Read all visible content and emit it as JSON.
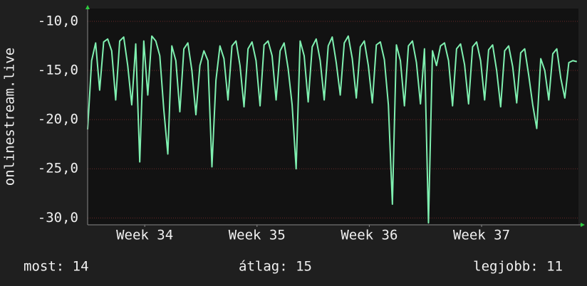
{
  "chart_data": {
    "type": "line",
    "y_label": "onlinestream.live",
    "x": [
      0,
      0.25,
      0.5,
      0.75,
      1,
      1.25,
      1.5,
      1.75,
      2,
      2.25,
      2.5,
      2.75,
      3,
      3.25,
      3.5,
      3.75,
      4,
      4.25,
      4.5,
      4.75,
      5,
      5.25,
      5.5,
      5.75,
      6,
      6.25,
      6.5,
      6.75,
      7,
      7.25,
      7.5,
      7.75,
      8,
      8.25,
      8.5,
      8.75,
      9,
      9.25,
      9.5,
      9.75,
      10,
      10.25,
      10.5,
      10.75,
      11,
      11.25,
      11.5,
      11.75,
      12,
      12.25,
      12.5,
      12.75,
      13,
      13.25,
      13.5,
      13.75,
      14,
      14.25,
      14.5,
      14.75,
      15,
      15.25,
      15.5,
      15.75,
      16,
      16.25,
      16.5,
      16.75,
      17,
      17.25,
      17.5,
      17.75,
      18,
      18.25,
      18.5,
      18.75,
      19,
      19.25,
      19.5,
      19.75,
      20,
      20.25,
      20.5,
      20.75,
      21,
      21.25,
      21.5,
      21.75,
      22,
      22.25,
      22.5,
      22.75,
      23,
      23.25,
      23.5,
      23.75,
      24,
      24.25,
      24.5,
      24.75,
      25,
      25.25,
      25.5,
      25.75,
      26,
      26.25,
      26.5,
      26.75,
      27,
      27.25,
      27.5,
      27.75,
      28,
      28.25,
      28.5,
      28.75,
      29,
      29.25,
      29.5,
      29.75,
      30,
      30.25,
      30.5
    ],
    "series": [
      {
        "color": "#7ff0b0",
        "values": [
          -21,
          -14,
          -12.2,
          -17,
          -12.1,
          -11.8,
          -13,
          -18,
          -12,
          -11.6,
          -14.5,
          -18.5,
          -12.3,
          -24.3,
          -12,
          -17.5,
          -11.5,
          -12,
          -13.5,
          -19,
          -23.5,
          -12.5,
          -14,
          -19.2,
          -12.8,
          -12.2,
          -15,
          -19.5,
          -14.5,
          -13,
          -14,
          -24.8,
          -16,
          -12.5,
          -13.8,
          -18,
          -12.5,
          -12,
          -14.5,
          -18.7,
          -12.8,
          -12.1,
          -14,
          -18.6,
          -12.4,
          -12,
          -13.5,
          -18,
          -13,
          -12.2,
          -14.8,
          -18.5,
          -25,
          -12,
          -13.5,
          -18.2,
          -12.6,
          -11.8,
          -14,
          -18,
          -12.5,
          -11.6,
          -14.2,
          -17.5,
          -12.2,
          -11.5,
          -13.8,
          -17.8,
          -12.6,
          -12,
          -14.5,
          -18.3,
          -12.4,
          -12.1,
          -13.9,
          -18.5,
          -28.6,
          -12.4,
          -14,
          -18.6,
          -12.5,
          -12,
          -14.2,
          -18.4,
          -12.8,
          -30.5,
          -13,
          -14.5,
          -12.5,
          -12.2,
          -14,
          -18.6,
          -12.8,
          -12.3,
          -14.4,
          -18.4,
          -12.6,
          -12.1,
          -14,
          -18,
          -12.9,
          -12.4,
          -15,
          -18.7,
          -13,
          -12.5,
          -14.6,
          -18.3,
          -13.2,
          -12.8,
          -15.5,
          -18.5,
          -20.9,
          -13.8,
          -15,
          -18,
          -13.3,
          -12.8,
          -15.8,
          -17.8,
          -14.2,
          -14,
          -14.1
        ]
      }
    ],
    "xlim": [
      0,
      30.6
    ],
    "xticks": [
      {
        "value": 3.56,
        "label": "Week 34"
      },
      {
        "value": 10.56,
        "label": "Week 35"
      },
      {
        "value": 17.56,
        "label": "Week 36"
      },
      {
        "value": 24.56,
        "label": "Week 37"
      }
    ],
    "ylim": [
      -30.7,
      -8.7
    ],
    "yticks": [
      {
        "value": -10,
        "label": "-10,0"
      },
      {
        "value": -15,
        "label": "-15,0"
      },
      {
        "value": -20,
        "label": "-20,0"
      },
      {
        "value": -25,
        "label": "-25,0"
      },
      {
        "value": -30,
        "label": "-30,0"
      }
    ],
    "grid": true,
    "footer": [
      "most: 14",
      "átlag: 15",
      "legjobb: 11"
    ]
  }
}
